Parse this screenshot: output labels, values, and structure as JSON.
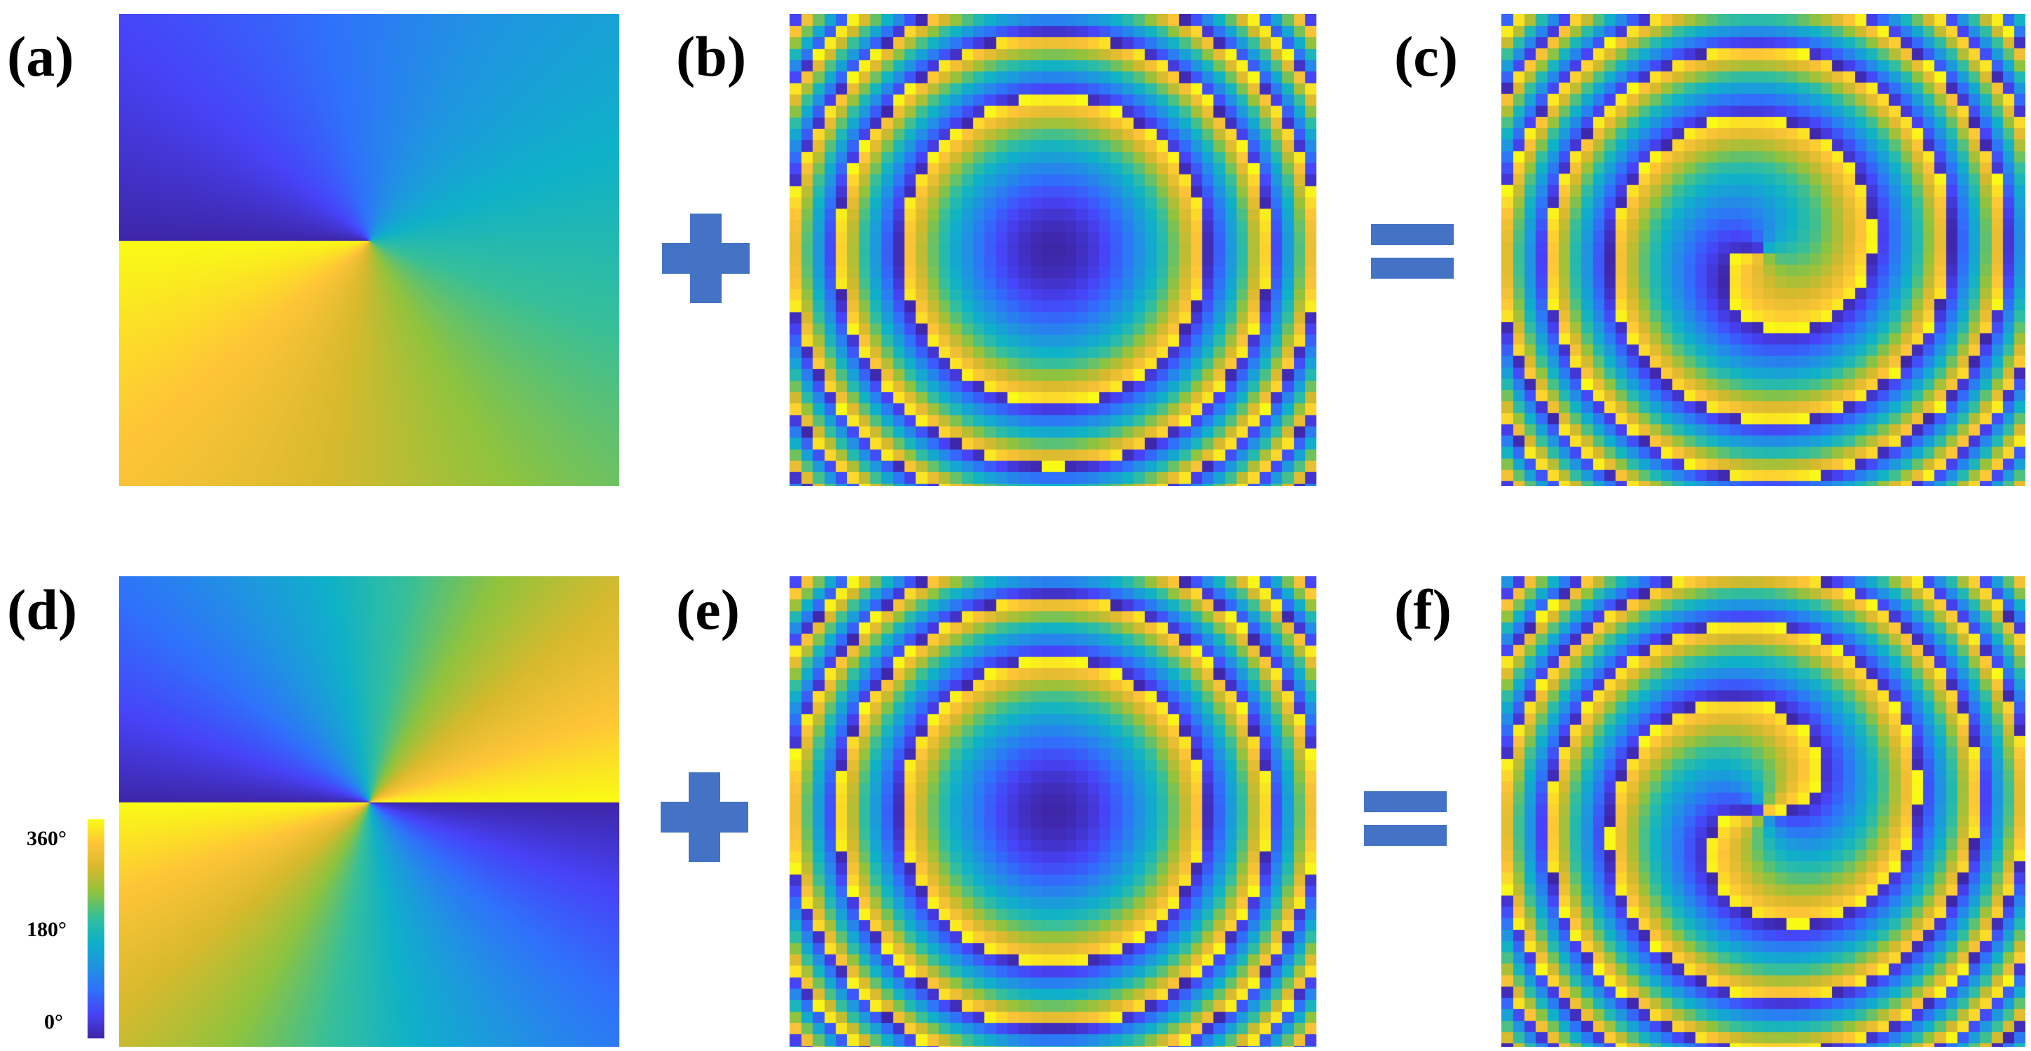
{
  "panels": [
    {
      "id": "a",
      "label": "(a)",
      "kind": "azimuth",
      "charge": 1
    },
    {
      "id": "b",
      "label": "(b)",
      "kind": "rings",
      "charge": 0
    },
    {
      "id": "c",
      "label": "(c)",
      "kind": "spiral",
      "charge": 1
    },
    {
      "id": "d",
      "label": "(d)",
      "kind": "azimuth",
      "charge": 2
    },
    {
      "id": "e",
      "label": "(e)",
      "kind": "rings",
      "charge": 0
    },
    {
      "id": "f",
      "label": "(f)",
      "kind": "spiral",
      "charge": 2
    }
  ],
  "operators": {
    "plus": "+",
    "equals": "=",
    "color": "#4472c4"
  },
  "colorbar": {
    "ticks": [
      "360°",
      "180°",
      "0°"
    ],
    "min": 0,
    "max": 360,
    "unit": "°"
  },
  "colormap": [
    "#3e26a8",
    "#4743f8",
    "#2f72fa",
    "#1f95e0",
    "#0fb1c8",
    "#37bf99",
    "#8fc33e",
    "#d7b92d",
    "#fec438",
    "#f9fb15"
  ]
}
